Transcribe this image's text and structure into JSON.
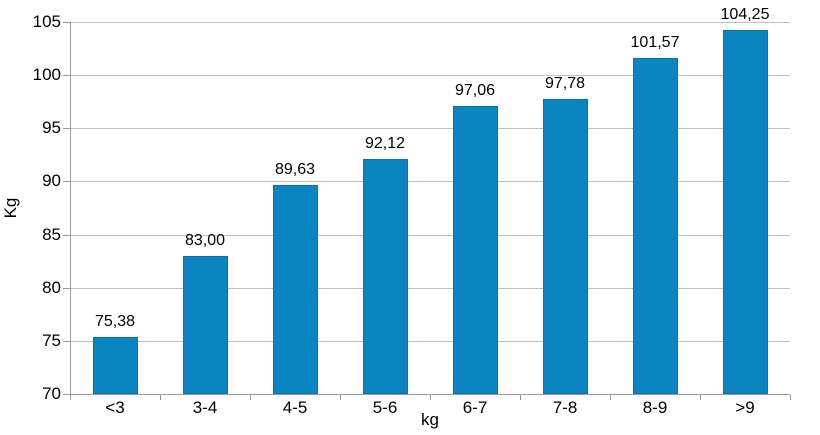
{
  "chart_data": {
    "type": "bar",
    "title": "",
    "categories": [
      "<3",
      "3-4",
      "4-5",
      "5-6",
      "6-7",
      "7-8",
      "8-9",
      ">9"
    ],
    "values": [
      75.38,
      83.0,
      89.63,
      92.12,
      97.06,
      97.78,
      101.57,
      104.25
    ],
    "value_labels": [
      "75,38",
      "83,00",
      "89,63",
      "92,12",
      "97,06",
      "97,78",
      "101,57",
      "104,25"
    ],
    "xlabel": "kg",
    "ylabel": "Kg",
    "ylim": [
      70,
      105
    ],
    "yticks": [
      70,
      75,
      80,
      85,
      90,
      95,
      100,
      105
    ],
    "ytick_labels": [
      "70",
      "75",
      "80",
      "85",
      "90",
      "95",
      "100",
      "105"
    ],
    "grid": true,
    "legend": "none",
    "bar_color": "#0b85c2",
    "bar_border_color": "#0a73a7",
    "gridline_color": "#c0c0c0",
    "axis_color": "#9a9a9a",
    "text_color": "#000000",
    "background_color": "#ffffff"
  }
}
